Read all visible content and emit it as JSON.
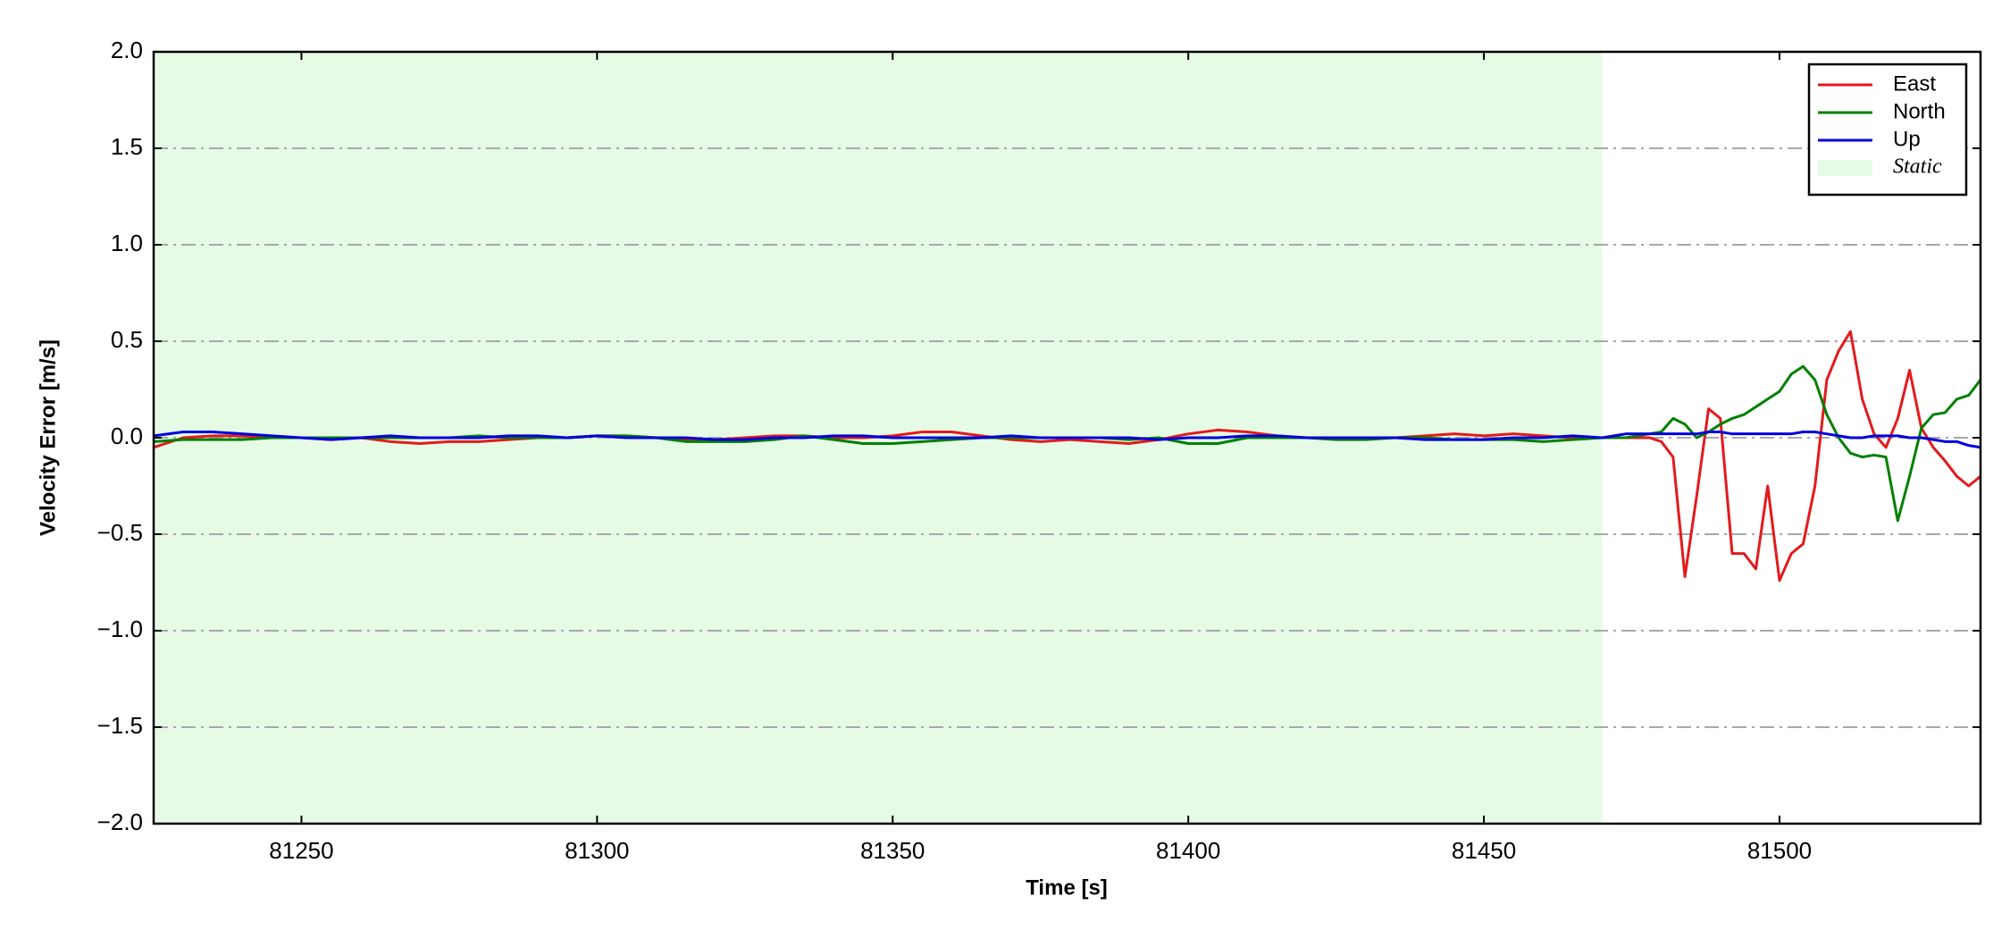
{
  "chart_data": {
    "type": "line",
    "xlabel": "Time [s]",
    "ylabel": "Velocity Error [m/s]",
    "xlim": [
      81225,
      81534
    ],
    "ylim": [
      -2.0,
      2.0
    ],
    "xticks": [
      81250,
      81300,
      81350,
      81400,
      81450,
      81500
    ],
    "yticks": [
      {
        "value": -2.0,
        "label": "−2.0"
      },
      {
        "value": -1.5,
        "label": "−1.5"
      },
      {
        "value": -1.0,
        "label": "−1.0"
      },
      {
        "value": -0.5,
        "label": "−0.5"
      },
      {
        "value": 0.0,
        "label": "0.0"
      },
      {
        "value": 0.5,
        "label": "0.5"
      },
      {
        "value": 1.0,
        "label": "1.0"
      },
      {
        "value": 1.5,
        "label": "1.5"
      },
      {
        "value": 2.0,
        "label": "2.0"
      }
    ],
    "grid": "y",
    "legend": "upper right",
    "shaded_regions": [
      {
        "name": "Static",
        "color": "#e6fbe6",
        "x": [
          81225,
          81470
        ]
      }
    ],
    "x": [
      81225,
      81230,
      81235,
      81240,
      81245,
      81250,
      81255,
      81260,
      81265,
      81270,
      81275,
      81280,
      81285,
      81290,
      81295,
      81300,
      81305,
      81310,
      81315,
      81320,
      81325,
      81330,
      81335,
      81340,
      81345,
      81350,
      81355,
      81360,
      81365,
      81370,
      81375,
      81380,
      81385,
      81390,
      81395,
      81400,
      81405,
      81410,
      81415,
      81420,
      81425,
      81430,
      81435,
      81440,
      81445,
      81450,
      81455,
      81460,
      81465,
      81470,
      81472,
      81474,
      81476,
      81478,
      81480,
      81482,
      81484,
      81486,
      81488,
      81490,
      81492,
      81494,
      81496,
      81498,
      81500,
      81502,
      81504,
      81506,
      81508,
      81510,
      81512,
      81514,
      81516,
      81518,
      81520,
      81522,
      81524,
      81526,
      81528,
      81530,
      81532,
      81534
    ],
    "series": [
      {
        "name": "East",
        "color": "#e31a1c",
        "values": [
          -0.05,
          0.0,
          0.01,
          0.01,
          0.0,
          0.0,
          -0.01,
          0.0,
          -0.02,
          -0.03,
          -0.02,
          -0.02,
          -0.01,
          0.0,
          0.0,
          0.01,
          0.01,
          0.0,
          -0.01,
          -0.01,
          0.0,
          0.01,
          0.01,
          0.0,
          0.0,
          0.01,
          0.03,
          0.03,
          0.01,
          -0.01,
          -0.02,
          -0.01,
          -0.02,
          -0.03,
          -0.01,
          0.02,
          0.04,
          0.03,
          0.01,
          0.0,
          0.0,
          0.0,
          0.0,
          0.01,
          0.02,
          0.01,
          0.02,
          0.01,
          0.0,
          0.0,
          0.0,
          0.0,
          0.0,
          0.0,
          -0.02,
          -0.1,
          -0.72,
          -0.3,
          0.15,
          0.1,
          -0.6,
          -0.6,
          -0.68,
          -0.25,
          -0.74,
          -0.6,
          -0.55,
          -0.25,
          0.3,
          0.45,
          0.55,
          0.2,
          0.02,
          -0.05,
          0.1,
          0.35,
          0.05,
          -0.05,
          -0.12,
          -0.2,
          -0.25,
          -0.2
        ]
      },
      {
        "name": "North",
        "color": "#008000",
        "values": [
          -0.02,
          -0.01,
          -0.01,
          -0.01,
          0.0,
          0.0,
          0.0,
          0.0,
          0.0,
          0.0,
          0.0,
          0.01,
          0.0,
          0.0,
          0.0,
          0.01,
          0.01,
          0.0,
          -0.02,
          -0.02,
          -0.02,
          -0.01,
          0.01,
          -0.01,
          -0.03,
          -0.03,
          -0.02,
          -0.01,
          0.0,
          0.0,
          0.0,
          0.0,
          0.0,
          -0.01,
          0.0,
          -0.03,
          -0.03,
          0.0,
          0.0,
          0.0,
          -0.01,
          -0.01,
          0.0,
          0.0,
          -0.01,
          -0.01,
          -0.01,
          -0.02,
          -0.01,
          0.0,
          0.0,
          0.0,
          0.01,
          0.02,
          0.03,
          0.1,
          0.07,
          0.0,
          0.03,
          0.07,
          0.1,
          0.12,
          0.16,
          0.2,
          0.24,
          0.33,
          0.37,
          0.3,
          0.12,
          0.0,
          -0.08,
          -0.1,
          -0.09,
          -0.1,
          -0.43,
          -0.2,
          0.05,
          0.12,
          0.13,
          0.2,
          0.22,
          0.3
        ]
      },
      {
        "name": "Up",
        "color": "#0000dd",
        "values": [
          0.01,
          0.03,
          0.03,
          0.02,
          0.01,
          0.0,
          -0.01,
          0.0,
          0.01,
          0.0,
          0.0,
          0.0,
          0.01,
          0.01,
          0.0,
          0.01,
          0.0,
          0.0,
          0.0,
          -0.01,
          -0.01,
          0.0,
          0.0,
          0.01,
          0.01,
          0.0,
          0.0,
          0.0,
          0.0,
          0.01,
          0.0,
          0.0,
          0.0,
          0.0,
          -0.01,
          0.0,
          0.0,
          0.01,
          0.01,
          0.0,
          0.0,
          0.0,
          0.0,
          -0.01,
          -0.01,
          -0.01,
          0.0,
          0.0,
          0.01,
          0.0,
          0.01,
          0.02,
          0.02,
          0.02,
          0.02,
          0.02,
          0.02,
          0.02,
          0.03,
          0.03,
          0.02,
          0.02,
          0.02,
          0.02,
          0.02,
          0.02,
          0.03,
          0.03,
          0.02,
          0.01,
          0.0,
          0.0,
          0.01,
          0.01,
          0.01,
          0.0,
          0.0,
          -0.01,
          -0.02,
          -0.02,
          -0.04,
          -0.05
        ]
      }
    ]
  }
}
